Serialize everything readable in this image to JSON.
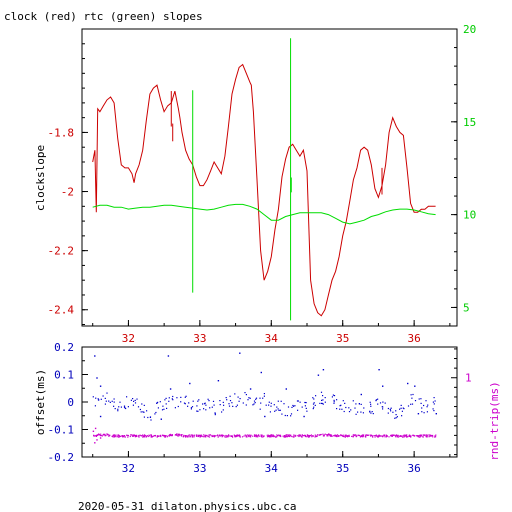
{
  "title": "clock (red) rtc (green) slopes",
  "footer": "2020-05-31 dilaton.physics.ubc.ca",
  "colors": {
    "clock": "#cc0000",
    "rtc": "#00dd00",
    "top_left_axis": "#cc0000",
    "top_right_axis": "#00cc00",
    "offset_pts": "#0000cc",
    "rndtrip_pts": "#cc00cc",
    "bottom_left_axis": "#0000bb",
    "bottom_right_axis": "#cc00cc"
  },
  "chart_data": [
    {
      "type": "line",
      "title": "clock (red) rtc (green) slopes",
      "ylabel": "clockslope",
      "xlim": [
        31.35,
        36.6
      ],
      "ylim": [
        -2.455,
        -1.45
      ],
      "y2lim": [
        4,
        20
      ],
      "xticks": [
        "32",
        "33",
        "34",
        "35",
        "36"
      ],
      "yticks": [
        "-1.8",
        "-2",
        "-2.2",
        "-2.4"
      ],
      "y2ticks": [
        "5",
        "10",
        "15",
        "20"
      ],
      "series": [
        {
          "name": "clock",
          "axis": "left",
          "x": [
            31.5,
            31.53,
            31.55,
            31.57,
            31.6,
            31.65,
            31.7,
            31.75,
            31.8,
            31.85,
            31.9,
            31.95,
            32.0,
            32.05,
            32.08,
            32.1,
            32.15,
            32.2,
            32.25,
            32.3,
            32.35,
            32.4,
            32.45,
            32.5,
            32.55,
            32.6,
            32.65,
            32.7,
            32.72,
            32.75,
            32.8,
            32.85,
            32.9,
            32.95,
            33.0,
            33.05,
            33.1,
            33.15,
            33.2,
            33.25,
            33.3,
            33.35,
            33.4,
            33.45,
            33.5,
            33.55,
            33.6,
            33.65,
            33.7,
            33.72,
            33.75,
            33.8,
            33.85,
            33.9,
            33.95,
            34.0,
            34.05,
            34.1,
            34.15,
            34.2,
            34.25,
            34.3,
            34.35,
            34.4,
            34.45,
            34.5,
            34.55,
            34.6,
            34.65,
            34.7,
            34.75,
            34.8,
            34.85,
            34.9,
            34.95,
            35.0,
            35.05,
            35.1,
            35.15,
            35.2,
            35.25,
            35.3,
            35.35,
            35.4,
            35.45,
            35.5,
            35.55,
            35.6,
            35.65,
            35.7,
            35.75,
            35.8,
            35.85,
            35.9,
            35.95,
            36.0,
            36.05,
            36.1,
            36.15,
            36.2,
            36.25,
            36.3
          ],
          "values": [
            -1.9,
            -1.86,
            -2.07,
            -1.72,
            -1.73,
            -1.71,
            -1.69,
            -1.68,
            -1.7,
            -1.82,
            -1.91,
            -1.92,
            -1.92,
            -1.94,
            -1.97,
            -1.94,
            -1.91,
            -1.86,
            -1.76,
            -1.67,
            -1.65,
            -1.64,
            -1.69,
            -1.73,
            -1.71,
            -1.7,
            -1.66,
            -1.72,
            -1.75,
            -1.8,
            -1.86,
            -1.89,
            -1.91,
            -1.95,
            -1.98,
            -1.98,
            -1.96,
            -1.93,
            -1.9,
            -1.92,
            -1.94,
            -1.88,
            -1.78,
            -1.67,
            -1.62,
            -1.58,
            -1.57,
            -1.6,
            -1.63,
            -1.64,
            -1.73,
            -1.96,
            -2.2,
            -2.3,
            -2.27,
            -2.22,
            -2.13,
            -2.06,
            -1.95,
            -1.89,
            -1.85,
            -1.84,
            -1.86,
            -1.88,
            -1.86,
            -1.93,
            -2.3,
            -2.38,
            -2.41,
            -2.42,
            -2.4,
            -2.35,
            -2.3,
            -2.27,
            -2.22,
            -2.15,
            -2.1,
            -2.03,
            -1.96,
            -1.92,
            -1.86,
            -1.85,
            -1.86,
            -1.91,
            -1.99,
            -2.02,
            -1.98,
            -1.91,
            -1.8,
            -1.75,
            -1.78,
            -1.8,
            -1.81,
            -1.92,
            -2.04,
            -2.07,
            -2.07,
            -2.06,
            -2.06,
            -2.05,
            -2.05,
            -2.05
          ]
        },
        {
          "name": "rtc",
          "axis": "right",
          "x": [
            31.5,
            31.6,
            31.7,
            31.8,
            31.9,
            32.0,
            32.1,
            32.2,
            32.3,
            32.4,
            32.5,
            32.6,
            32.7,
            32.8,
            32.9,
            33.0,
            33.1,
            33.2,
            33.3,
            33.4,
            33.5,
            33.6,
            33.7,
            33.8,
            33.9,
            34.0,
            34.1,
            34.2,
            34.3,
            34.4,
            34.5,
            34.6,
            34.7,
            34.8,
            34.9,
            35.0,
            35.1,
            35.2,
            35.3,
            35.4,
            35.5,
            35.6,
            35.7,
            35.8,
            35.9,
            36.0,
            36.1,
            36.2,
            36.3
          ],
          "values": [
            10.4,
            10.5,
            10.5,
            10.4,
            10.4,
            10.3,
            10.35,
            10.4,
            10.4,
            10.45,
            10.5,
            10.5,
            10.45,
            10.4,
            10.35,
            10.3,
            10.25,
            10.3,
            10.4,
            10.5,
            10.55,
            10.55,
            10.45,
            10.3,
            10.0,
            9.7,
            9.7,
            9.9,
            10.0,
            10.1,
            10.1,
            10.1,
            10.1,
            10.0,
            9.8,
            9.6,
            9.5,
            9.6,
            9.7,
            9.9,
            10.0,
            10.15,
            10.25,
            10.3,
            10.3,
            10.25,
            10.15,
            10.05,
            10.0
          ]
        }
      ],
      "spikes": [
        {
          "series": "clock",
          "x": 32.6,
          "values": [
            -1.78,
            -1.66
          ]
        },
        {
          "series": "clock",
          "x": 32.62,
          "values": [
            -1.83,
            -1.77
          ]
        },
        {
          "series": "clock",
          "x": 35.55,
          "values": [
            -2.01,
            -1.92
          ]
        },
        {
          "series": "rtc",
          "x": 32.9,
          "values": [
            5.8,
            16.7
          ]
        },
        {
          "series": "rtc",
          "x": 34.27,
          "values": [
            4.3,
            19.5
          ]
        },
        {
          "series": "rtc",
          "x": 34.28,
          "values": [
            11.2,
            12.0
          ]
        }
      ]
    },
    {
      "type": "scatter",
      "ylabel": "offset(ms)",
      "y2label": "rnd-trip(ms)",
      "xlim": [
        31.35,
        36.6
      ],
      "ylim": [
        -0.2,
        0.2
      ],
      "y2lim": [
        0.175,
        1.32
      ],
      "xticks": [
        "32",
        "33",
        "34",
        "35",
        "36"
      ],
      "yticks": [
        "0.2",
        "0.1",
        "0",
        "-0.1",
        "-0.2"
      ],
      "y2ticks": [
        "1"
      ],
      "series": [
        {
          "name": "offset",
          "axis": "left",
          "x": [
            31.5,
            31.6,
            31.7,
            31.8,
            31.9,
            32.0,
            32.1,
            32.2,
            32.3,
            32.4,
            32.5,
            32.6,
            32.7,
            32.8,
            32.9,
            33.0,
            33.1,
            33.2,
            33.3,
            33.4,
            33.5,
            33.6,
            33.7,
            33.8,
            33.9,
            34.0,
            34.1,
            34.2,
            34.3,
            34.4,
            34.5,
            34.6,
            34.7,
            34.8,
            34.9,
            35.0,
            35.1,
            35.2,
            35.3,
            35.4,
            35.5,
            35.6,
            35.7,
            35.8,
            35.9,
            36.0,
            36.1,
            36.2,
            36.3
          ],
          "values": [
            0.0,
            0.01,
            0.02,
            -0.01,
            -0.02,
            0.01,
            0.0,
            -0.03,
            -0.04,
            -0.02,
            -0.01,
            0.0,
            0.01,
            0.0,
            -0.02,
            -0.01,
            0.0,
            -0.02,
            -0.01,
            0.0,
            0.01,
            0.02,
            0.0,
            -0.01,
            0.01,
            -0.02,
            -0.01,
            -0.03,
            -0.02,
            0.0,
            -0.01,
            0.0,
            0.02,
            0.01,
            0.0,
            -0.01,
            -0.01,
            -0.02,
            -0.03,
            -0.02,
            0.0,
            -0.02,
            -0.04,
            -0.03,
            0.0,
            0.02,
            -0.01,
            -0.02,
            0.0
          ],
          "spread": 0.025,
          "outliers": [
            [
              31.52,
              0.17
            ],
            [
              31.55,
              0.09
            ],
            [
              31.6,
              0.06
            ],
            [
              32.55,
              0.17
            ],
            [
              32.58,
              0.05
            ],
            [
              32.85,
              0.07
            ],
            [
              33.25,
              0.08
            ],
            [
              33.55,
              0.18
            ],
            [
              33.85,
              0.11
            ],
            [
              33.7,
              0.05
            ],
            [
              34.2,
              0.05
            ],
            [
              34.65,
              0.1
            ],
            [
              34.72,
              0.12
            ],
            [
              35.25,
              0.03
            ],
            [
              35.5,
              0.12
            ],
            [
              35.55,
              0.06
            ],
            [
              35.9,
              0.07
            ],
            [
              36.0,
              0.06
            ],
            [
              36.05,
              -0.04
            ],
            [
              36.3,
              -0.04
            ],
            [
              31.6,
              -0.05
            ],
            [
              32.45,
              -0.06
            ],
            [
              33.9,
              -0.05
            ],
            [
              34.45,
              -0.05
            ]
          ]
        },
        {
          "name": "rnd-trip",
          "axis": "right",
          "x": [
            31.5,
            31.6,
            31.7,
            31.8,
            31.9,
            32.0,
            32.1,
            32.2,
            32.3,
            32.4,
            32.5,
            32.6,
            32.7,
            32.8,
            32.9,
            33.0,
            33.1,
            33.2,
            33.3,
            33.4,
            33.5,
            33.6,
            33.7,
            33.8,
            33.9,
            34.0,
            34.1,
            34.2,
            34.3,
            34.4,
            34.5,
            34.6,
            34.7,
            34.8,
            34.9,
            35.0,
            35.1,
            35.2,
            35.3,
            35.4,
            35.5,
            35.6,
            35.7,
            35.8,
            35.9,
            36.0,
            36.1,
            36.2,
            36.3
          ],
          "values": [
            0.405,
            0.41,
            0.41,
            0.4,
            0.4,
            0.4,
            0.4,
            0.4,
            0.4,
            0.4,
            0.4,
            0.41,
            0.41,
            0.4,
            0.4,
            0.4,
            0.4,
            0.4,
            0.4,
            0.4,
            0.4,
            0.4,
            0.4,
            0.4,
            0.4,
            0.4,
            0.4,
            0.4,
            0.4,
            0.4,
            0.4,
            0.4,
            0.41,
            0.41,
            0.4,
            0.4,
            0.4,
            0.4,
            0.4,
            0.4,
            0.4,
            0.4,
            0.4,
            0.4,
            0.4,
            0.4,
            0.4,
            0.4,
            0.4
          ],
          "spread": 0.012,
          "outliers": [
            [
              31.52,
              0.33
            ],
            [
              31.55,
              0.36
            ],
            [
              31.53,
              0.48
            ],
            [
              31.6,
              0.38
            ],
            [
              31.5,
              0.45
            ]
          ]
        }
      ]
    }
  ]
}
